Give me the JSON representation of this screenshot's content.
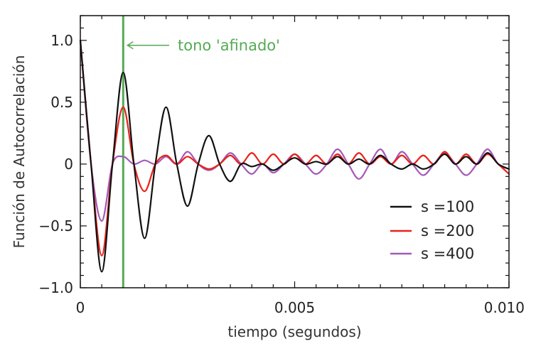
{
  "chart_data": {
    "type": "line",
    "title": "",
    "xlabel": "tiempo (segundos)",
    "ylabel": "Función de Autocorrelación",
    "xlim": [
      0,
      0.01
    ],
    "ylim": [
      -1.0,
      1.2
    ],
    "x_ticks": [
      {
        "value": 0,
        "label": "0"
      },
      {
        "value": 0.005,
        "label": "0.005"
      },
      {
        "value": 0.01,
        "label": "0.010"
      }
    ],
    "y_ticks": [
      {
        "value": 1.0,
        "label": "1.0"
      },
      {
        "value": 0.5,
        "label": "0.5"
      },
      {
        "value": 0,
        "label": "0"
      },
      {
        "value": -0.5,
        "label": "−0.5"
      },
      {
        "value": -1.0,
        "label": "−1.0"
      }
    ],
    "grid": false,
    "legend_position": "bottom-right",
    "annotation": {
      "text": "tono 'afinado'",
      "x": 0.001,
      "color": "#55aa55"
    },
    "x": [
      0,
      0.00025,
      0.0005,
      0.00075,
      0.001,
      0.00125,
      0.0015,
      0.00175,
      0.002,
      0.00225,
      0.0025,
      0.00275,
      0.003,
      0.00325,
      0.0035,
      0.00375,
      0.004,
      0.00425,
      0.0045,
      0.00475,
      0.005,
      0.00525,
      0.0055,
      0.00575,
      0.006,
      0.00625,
      0.0065,
      0.00675,
      0.007,
      0.00725,
      0.0075,
      0.00775,
      0.008,
      0.00825,
      0.0085,
      0.00875,
      0.009,
      0.00925,
      0.0095,
      0.00975,
      0.01
    ],
    "series": [
      {
        "name": "s =100",
        "color": "#111111",
        "values": [
          1.0,
          0.0,
          -0.87,
          0.0,
          0.74,
          0.0,
          -0.6,
          0.0,
          0.46,
          0.0,
          -0.34,
          0.0,
          0.23,
          0.0,
          -0.14,
          0.0,
          -0.02,
          0.0,
          -0.05,
          0.0,
          0.05,
          0.0,
          0.02,
          0.0,
          0.06,
          0.0,
          0.04,
          0.0,
          0.07,
          0.0,
          -0.04,
          0.0,
          -0.04,
          0.0,
          0.08,
          0.0,
          0.06,
          0.0,
          0.09,
          0.0,
          -0.04
        ]
      },
      {
        "name": "s =200",
        "color": "#e8231c",
        "values": [
          1.0,
          0.0,
          -0.74,
          0.0,
          0.46,
          0.0,
          -0.22,
          0.0,
          0.07,
          0.0,
          0.06,
          0.0,
          -0.04,
          0.0,
          0.07,
          0.0,
          0.09,
          0.0,
          0.08,
          0.0,
          0.08,
          0.0,
          0.07,
          0.0,
          0.08,
          0.0,
          0.09,
          0.0,
          0.06,
          0.0,
          0.07,
          0.0,
          0.07,
          0.0,
          0.1,
          0.0,
          0.08,
          0.0,
          0.08,
          0.0,
          -0.08
        ]
      },
      {
        "name": "s =400",
        "color": "#a459b8",
        "values": [
          1.0,
          0.0,
          -0.46,
          0.0,
          0.06,
          0.0,
          0.03,
          0.0,
          0.06,
          0.0,
          0.1,
          0.0,
          -0.05,
          0.0,
          0.09,
          0.0,
          -0.08,
          0.0,
          -0.07,
          0.0,
          0.08,
          0.0,
          -0.08,
          0.0,
          0.12,
          0.0,
          -0.12,
          0.0,
          0.12,
          0.0,
          0.1,
          0.0,
          -0.09,
          0.0,
          0.09,
          0.0,
          -0.09,
          0.0,
          0.12,
          0.0,
          -0.04
        ]
      }
    ]
  }
}
